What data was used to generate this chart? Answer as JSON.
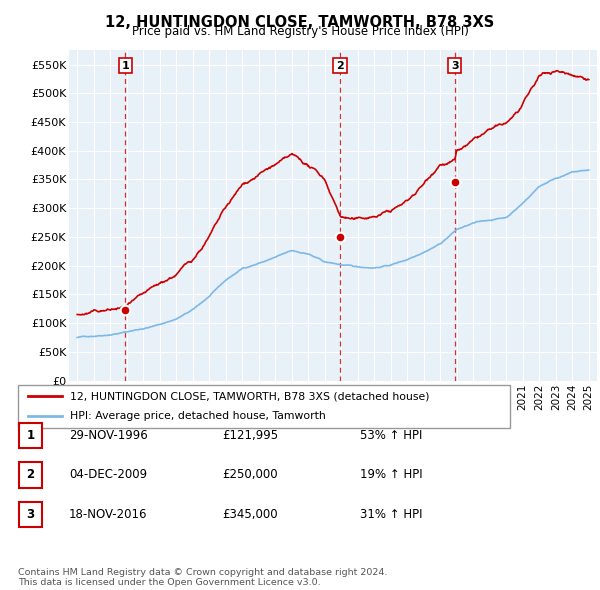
{
  "title": "12, HUNTINGDON CLOSE, TAMWORTH, B78 3XS",
  "subtitle": "Price paid vs. HM Land Registry's House Price Index (HPI)",
  "ylim": [
    0,
    575000
  ],
  "yticks": [
    0,
    50000,
    100000,
    150000,
    200000,
    250000,
    300000,
    350000,
    400000,
    450000,
    500000,
    550000
  ],
  "ytick_labels": [
    "£0",
    "£50K",
    "£100K",
    "£150K",
    "£200K",
    "£250K",
    "£300K",
    "£350K",
    "£400K",
    "£450K",
    "£500K",
    "£550K"
  ],
  "hpi_color": "#7cb9e8",
  "price_color": "#cc0000",
  "background_color": "#ffffff",
  "plot_bg_color": "#e8f0f8",
  "grid_color": "#ffffff",
  "sale_points": [
    {
      "date_num": 1996.91,
      "price": 121995,
      "label": "1"
    },
    {
      "date_num": 2009.92,
      "price": 250000,
      "label": "2"
    },
    {
      "date_num": 2016.88,
      "price": 345000,
      "label": "3"
    }
  ],
  "legend_entries": [
    {
      "label": "12, HUNTINGDON CLOSE, TAMWORTH, B78 3XS (detached house)",
      "color": "#cc0000"
    },
    {
      "label": "HPI: Average price, detached house, Tamworth",
      "color": "#7cb9e8"
    }
  ],
  "table_rows": [
    {
      "num": "1",
      "date": "29-NOV-1996",
      "price": "£121,995",
      "change": "53% ↑ HPI"
    },
    {
      "num": "2",
      "date": "04-DEC-2009",
      "price": "£250,000",
      "change": "19% ↑ HPI"
    },
    {
      "num": "3",
      "date": "18-NOV-2016",
      "price": "£345,000",
      "change": "31% ↑ HPI"
    }
  ],
  "footer": "Contains HM Land Registry data © Crown copyright and database right 2024.\nThis data is licensed under the Open Government Licence v3.0.",
  "xmin": 1993.5,
  "xmax": 2025.5,
  "hpi_segments": [
    [
      1994,
      75000
    ],
    [
      1995,
      78000
    ],
    [
      1996,
      82000
    ],
    [
      1997,
      87000
    ],
    [
      1998,
      93000
    ],
    [
      1999,
      100000
    ],
    [
      2000,
      110000
    ],
    [
      2001,
      125000
    ],
    [
      2002,
      148000
    ],
    [
      2003,
      175000
    ],
    [
      2004,
      195000
    ],
    [
      2005,
      205000
    ],
    [
      2006,
      215000
    ],
    [
      2007,
      225000
    ],
    [
      2008,
      220000
    ],
    [
      2009,
      205000
    ],
    [
      2010,
      200000
    ],
    [
      2011,
      195000
    ],
    [
      2012,
      195000
    ],
    [
      2013,
      200000
    ],
    [
      2014,
      210000
    ],
    [
      2015,
      225000
    ],
    [
      2016,
      240000
    ],
    [
      2017,
      265000
    ],
    [
      2018,
      275000
    ],
    [
      2019,
      280000
    ],
    [
      2020,
      285000
    ],
    [
      2021,
      310000
    ],
    [
      2022,
      340000
    ],
    [
      2023,
      355000
    ],
    [
      2024,
      365000
    ],
    [
      2025,
      368000
    ]
  ],
  "price_segments": [
    [
      1994,
      115000
    ],
    [
      1995,
      118000
    ],
    [
      1996,
      120000
    ],
    [
      1996.91,
      121995
    ],
    [
      1997,
      125000
    ],
    [
      1998,
      135000
    ],
    [
      1999,
      148000
    ],
    [
      2000,
      165000
    ],
    [
      2001,
      190000
    ],
    [
      2002,
      230000
    ],
    [
      2003,
      275000
    ],
    [
      2004,
      310000
    ],
    [
      2005,
      330000
    ],
    [
      2006,
      345000
    ],
    [
      2007,
      355000
    ],
    [
      2008,
      335000
    ],
    [
      2009,
      310000
    ],
    [
      2009.92,
      250000
    ],
    [
      2010,
      248000
    ],
    [
      2011,
      240000
    ],
    [
      2012,
      245000
    ],
    [
      2013,
      255000
    ],
    [
      2014,
      270000
    ],
    [
      2015,
      300000
    ],
    [
      2016,
      340000
    ],
    [
      2016.88,
      345000
    ],
    [
      2017,
      360000
    ],
    [
      2018,
      375000
    ],
    [
      2019,
      390000
    ],
    [
      2020,
      395000
    ],
    [
      2021,
      425000
    ],
    [
      2022,
      470000
    ],
    [
      2023,
      480000
    ],
    [
      2024,
      475000
    ],
    [
      2025,
      472000
    ]
  ]
}
